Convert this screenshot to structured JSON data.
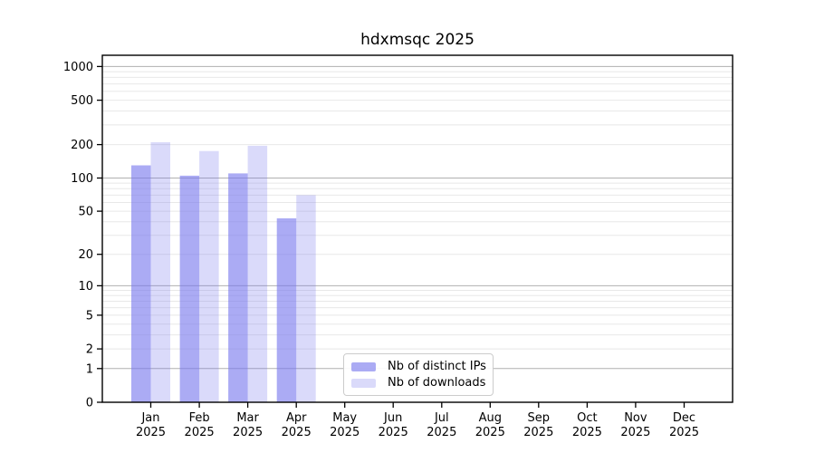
{
  "title": "hdxmsqc 2025",
  "chart_data": {
    "type": "bar",
    "title": "hdxmsqc 2025",
    "categories": [
      "Jan",
      "Feb",
      "Mar",
      "Apr",
      "May",
      "Jun",
      "Jul",
      "Aug",
      "Sep",
      "Oct",
      "Nov",
      "Dec"
    ],
    "category_year": "2025",
    "series": [
      {
        "name": "Nb of distinct IPs",
        "fill": "#7777ee",
        "fill_opacity": 0.62,
        "values": [
          130,
          105,
          110,
          43,
          0,
          0,
          0,
          0,
          0,
          0,
          0,
          0
        ]
      },
      {
        "name": "Nb of downloads",
        "fill": "#7777ee",
        "fill_opacity": 0.27,
        "values": [
          210,
          175,
          195,
          70,
          0,
          0,
          0,
          0,
          0,
          0,
          0,
          0
        ]
      }
    ],
    "y_axis": {
      "scale": "log1p",
      "tick_values": [
        0,
        1,
        2,
        5,
        10,
        20,
        50,
        100,
        200,
        500,
        1000
      ],
      "major_grid_values": [
        1,
        10,
        100,
        1000
      ],
      "ylim": [
        0,
        1262
      ]
    },
    "x_axis": {
      "tick_label_year": "2025"
    },
    "grid": true,
    "legend_position": "lower center",
    "colors": {
      "grid_major": "#b0b0b0",
      "grid_minor": "#e8e8e8",
      "axis": "#000000",
      "background": "#ffffff"
    }
  }
}
